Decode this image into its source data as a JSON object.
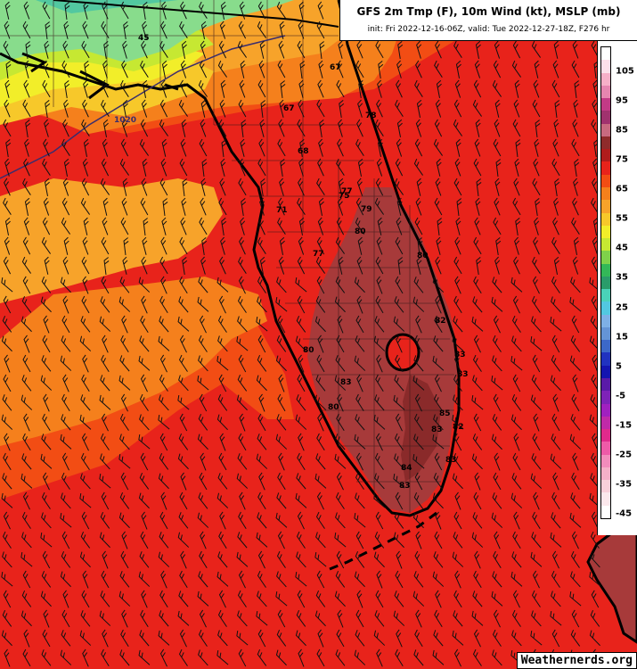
{
  "title": {
    "main": "GFS 2m Tmp (F), 10m Wind (kt), MSLP (mb)",
    "sub": "init: Fri 2022-12-16-06Z, valid: Tue 2022-12-27-18Z, F276 hr"
  },
  "scale": {
    "labels": [
      "105",
      "95",
      "85",
      "75",
      "65",
      "55",
      "45",
      "35",
      "25",
      "15",
      "5",
      "-5",
      "-15",
      "-25",
      "-35",
      "-45"
    ],
    "colors": [
      "#ffffff",
      "#fde0ea",
      "#f7b0c8",
      "#e686b0",
      "#c23a86",
      "#a0326e",
      "#c86a80",
      "#8f2b2b",
      "#b01c1c",
      "#e8231b",
      "#f24d14",
      "#f5801c",
      "#f7a32a",
      "#f7c82a",
      "#f2ee29",
      "#c6e832",
      "#7fd24a",
      "#33b858",
      "#2a9c6a",
      "#4ad2b8",
      "#52c8e0",
      "#7eb0e6",
      "#6494d6",
      "#3c68c8",
      "#2032c0",
      "#1414b0",
      "#5a1aa8",
      "#7e22b8",
      "#a020c0",
      "#c02aa8",
      "#e02a8c",
      "#ee5aa8",
      "#f28cbc",
      "#f5b0c8",
      "#f8d0da",
      "#fbe8ec",
      "#ffffff"
    ]
  },
  "map": {
    "labels": {
      "temps": [
        "45",
        "67",
        "68",
        "67",
        "71",
        "75",
        "77",
        "78",
        "79",
        "77",
        "80",
        "80",
        "83",
        "82",
        "80",
        "83",
        "80",
        "83",
        "85",
        "83",
        "82",
        "84",
        "83",
        "83"
      ],
      "isobar": "1020"
    }
  },
  "watermark": "Weathernerds.org"
}
